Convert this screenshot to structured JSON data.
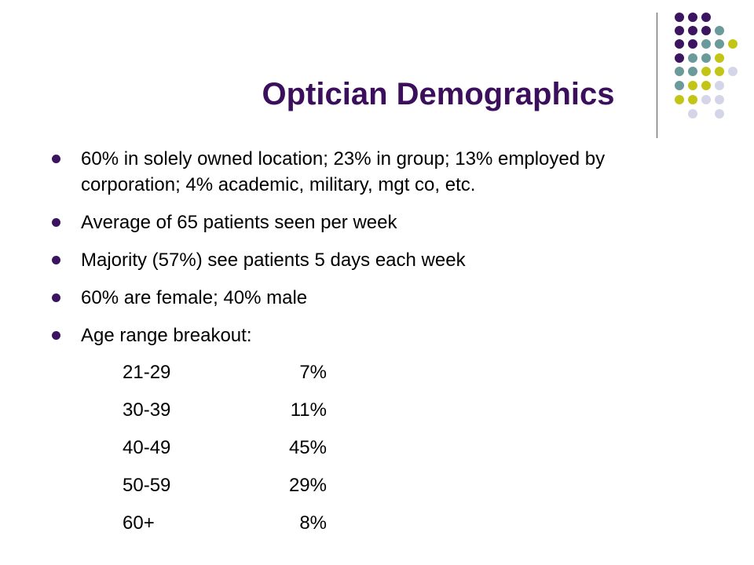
{
  "slide": {
    "title": "Optician Demographics",
    "title_color": "#3b0f5c",
    "bullet_color": "#3b1460"
  },
  "decoration": {
    "dot_colors": {
      "purple": "#3c1561",
      "teal": "#6b9a9b",
      "yellow": "#c3c516",
      "lavender": "#d5d5ea"
    }
  },
  "bullets": [
    "60% in solely owned location; 23% in group; 13% employed by corporation; 4% academic, military, mgt co, etc.",
    "Average of 65 patients seen per week",
    "Majority (57%) see patients 5 days each week",
    "60% are female; 40% male",
    "Age range breakout:"
  ],
  "age_breakout": [
    {
      "range": "21-29",
      "percent": "7%"
    },
    {
      "range": "30-39",
      "percent": "11%"
    },
    {
      "range": "40-49",
      "percent": "45%"
    },
    {
      "range": "50-59",
      "percent": "29%"
    },
    {
      "range": "60+",
      "percent": "8%"
    }
  ]
}
